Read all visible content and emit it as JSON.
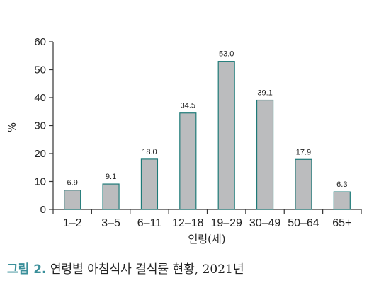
{
  "chart_data": {
    "type": "bar",
    "categories": [
      "1–2",
      "3–5",
      "6–11",
      "12–18",
      "19–29",
      "30–49",
      "50–64",
      "65+"
    ],
    "values": [
      6.9,
      9.1,
      18.0,
      34.5,
      53.0,
      39.1,
      17.9,
      6.3
    ],
    "value_labels": [
      "6.9",
      "9.1",
      "18.0",
      "34.5",
      "53.0",
      "39.1",
      "17.9",
      "6.3"
    ],
    "yticks": [
      "0",
      "10",
      "20",
      "30",
      "40",
      "50",
      "60"
    ],
    "ylim": [
      0,
      60
    ],
    "xlabel": "연령(세)",
    "ylabel": "%",
    "grid": false,
    "colors": {
      "bar_fill": "#bbbcbe",
      "bar_stroke": "#1e7a78",
      "axis": "#333333"
    }
  },
  "caption": {
    "label": "그림 2.",
    "text": "연령별 아침식사 결식률 현황, 2021년",
    "label_color": "#3a8f9a"
  }
}
